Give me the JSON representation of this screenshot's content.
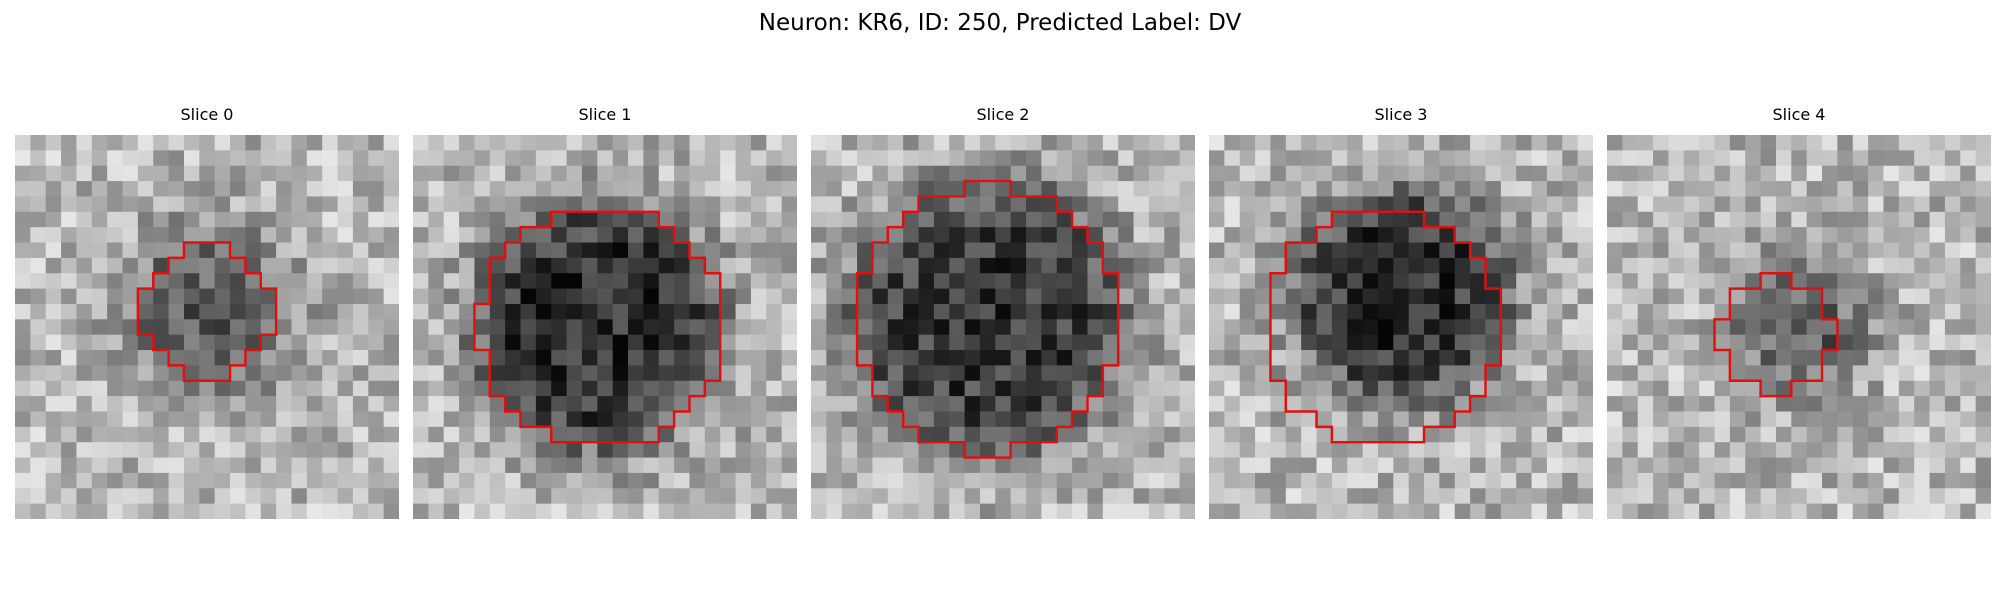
{
  "figure": {
    "title": "Neuron: KR6, ID: 250, Predicted Label: DV"
  },
  "colors": {
    "contour": "#e01010",
    "background": "#ffffff"
  },
  "slices": [
    {
      "label": "Slice 0",
      "blob": {
        "cx": 12.5,
        "cy": 11.5,
        "r": 5.5,
        "darkness": 0.35
      },
      "contour": {
        "cx": 12.5,
        "cy": 11.5,
        "r": 4.2
      }
    },
    {
      "label": "Slice 1",
      "blob": {
        "cx": 12.0,
        "cy": 12.5,
        "r": 8.0,
        "darkness": 0.55
      },
      "contour": {
        "cx": 12.3,
        "cy": 12.5,
        "r": 7.9
      }
    },
    {
      "label": "Slice 2",
      "blob": {
        "cx": 11.5,
        "cy": 12.0,
        "r": 9.0,
        "darkness": 0.5
      },
      "contour": {
        "cx": 11.5,
        "cy": 12.0,
        "r": 8.7
      }
    },
    {
      "label": "Slice 3",
      "blob": {
        "cx": 12.5,
        "cy": 10.5,
        "r": 7.0,
        "darkness": 0.55
      },
      "contour": {
        "cx": 11.2,
        "cy": 12.5,
        "r": 7.6
      }
    },
    {
      "label": "Slice 4",
      "blob": {
        "cx": 12.5,
        "cy": 12.5,
        "r": 4.0,
        "darkness": 0.4
      },
      "contour": {
        "cx": 11.0,
        "cy": 13.0,
        "r": 3.8
      }
    }
  ]
}
